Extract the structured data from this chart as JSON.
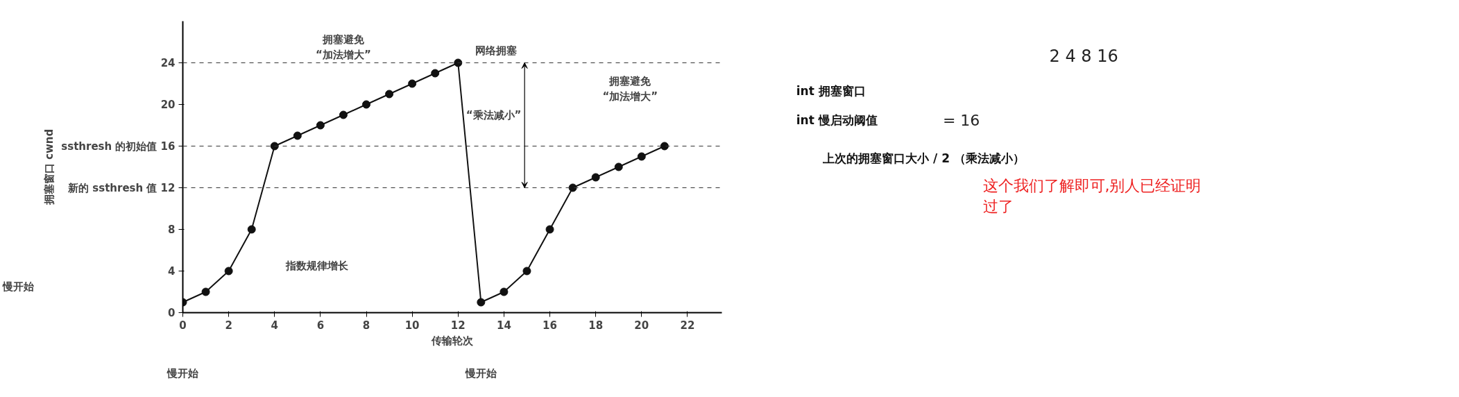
{
  "chart_data": [
    {
      "type": "line",
      "xlabel": "传输轮次",
      "ylabel": "拥塞窗口 cwnd",
      "marker": "circle",
      "line_style": "solid",
      "grid": false,
      "x": [
        0,
        1,
        2,
        3,
        4,
        5,
        6,
        7,
        8,
        9,
        10,
        11,
        12,
        13,
        14,
        15,
        16,
        17,
        18,
        19,
        20,
        21
      ],
      "series": [
        {
          "color": "#111111",
          "values": [
            1,
            2,
            4,
            8,
            16,
            17,
            18,
            19,
            20,
            21,
            22,
            23,
            24,
            1,
            2,
            4,
            8,
            12,
            13,
            14,
            15,
            16
          ]
        }
      ],
      "xlim": [
        0,
        23.5
      ],
      "ylim": [
        0,
        28
      ],
      "xticks": [
        0,
        2,
        4,
        6,
        8,
        10,
        12,
        14,
        16,
        18,
        20,
        22
      ],
      "yticks": [
        0,
        4,
        8,
        {
          "value": 12,
          "label": "新的 ssthresh 值 12"
        },
        {
          "value": 16,
          "label": "ssthresh 的初始值 16"
        },
        20,
        24
      ],
      "ref_lines": [
        {
          "axis": "y",
          "value": 24,
          "line_style": "dashed"
        },
        {
          "axis": "y",
          "value": 16,
          "line_style": "dashed"
        },
        {
          "axis": "y",
          "value": 12,
          "line_style": "dashed"
        }
      ],
      "annotations": [
        "拥塞避免\n“加法增大”",
        {
          "text": "网络拥塞",
          "x": 12,
          "y": 24
        },
        "“乘法减小”",
        "拥塞避免\n“加法增大”",
        "指数规律增长",
        "慢开始",
        "慢开始",
        "慢开始"
      ]
    },
    {
      "type": "other",
      "annotations": [
        "2  4 8  16",
        "int 拥塞窗口",
        "int 慢启动阈值",
        "= 16",
        "上次的拥塞窗口大小 / 2 （乘法减小）",
        "这个我们了解即可,别人已经证明过了"
      ]
    }
  ]
}
